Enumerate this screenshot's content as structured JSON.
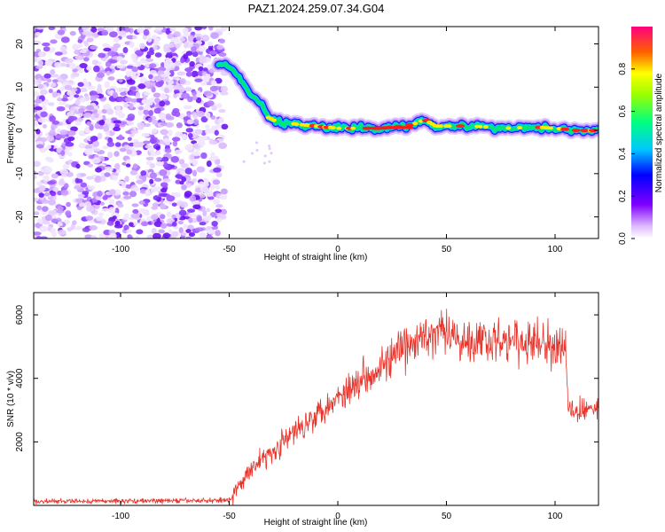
{
  "page": {
    "title": "PAZ1.2024.259.07.34.G04"
  },
  "colorbar": {
    "label": "Normalized spectral amplitude",
    "ticks": [
      "0.0",
      "0.2",
      "0.4",
      "0.6",
      "0.8"
    ]
  },
  "chart_data": [
    {
      "type": "heatmap",
      "title": "PAZ1.2024.259.07.34.G04",
      "xlabel": "Height of straight line (km)",
      "ylabel": "Frequency (Hz)",
      "xlim": [
        -140,
        120
      ],
      "ylim": [
        -25,
        24
      ],
      "xticks": [
        -100,
        -50,
        0,
        50,
        100
      ],
      "yticks": [
        20,
        10,
        0,
        -10,
        -20
      ],
      "ytick_labels": [
        "20",
        "10",
        "0",
        "-10",
        "-20"
      ],
      "noise_region_x": [
        -140,
        -52
      ],
      "dominant_frequency_trace": {
        "x": [
          -55,
          -50,
          -45,
          -40,
          -35,
          -32,
          -28,
          -20,
          -10,
          0,
          10,
          20,
          30,
          35,
          40,
          45,
          50,
          60,
          70,
          80,
          90,
          100,
          110,
          120
        ],
        "y": [
          15,
          15,
          12,
          8,
          6,
          3,
          2,
          1.5,
          1,
          0.5,
          0.5,
          0.5,
          1,
          1.5,
          2.5,
          1,
          1,
          1,
          0.8,
          0.5,
          0.8,
          0.5,
          0,
          0
        ]
      },
      "colorbar": {
        "label": "Normalized spectral amplitude",
        "range": [
          0,
          1
        ]
      }
    },
    {
      "type": "line",
      "title": "",
      "xlabel": "Height of straight line (km)",
      "ylabel": "SNR (10 * v/v)",
      "xlim": [
        -140,
        120
      ],
      "ylim": [
        0,
        6700
      ],
      "xticks": [
        -100,
        -50,
        0,
        50,
        100
      ],
      "yticks": [
        2000,
        4000,
        6000
      ],
      "color": "#e8342b",
      "series": [
        {
          "x": [
            -140,
            -100,
            -60,
            -50,
            -45,
            -40,
            -30,
            -20,
            -10,
            0,
            10,
            20,
            30,
            40,
            50,
            60,
            70,
            80,
            90,
            100,
            104,
            105,
            106,
            110,
            120
          ],
          "y": [
            120,
            140,
            150,
            180,
            600,
            1200,
            1700,
            2300,
            2900,
            3400,
            3950,
            4400,
            4900,
            5300,
            5350,
            5200,
            5200,
            5150,
            5100,
            5000,
            4950,
            4900,
            3000,
            3000,
            3000
          ]
        }
      ]
    }
  ]
}
